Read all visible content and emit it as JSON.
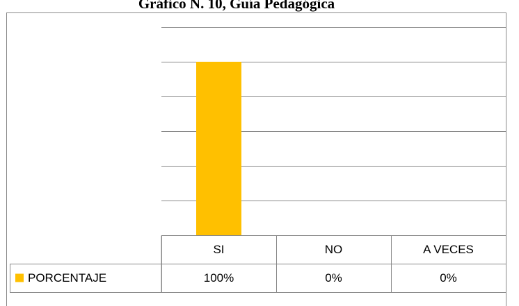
{
  "chart_data": {
    "type": "bar",
    "title": "Gráfico N. 10, Guía Pedagógica",
    "categories": [
      "SI",
      "NO",
      "A VECES"
    ],
    "series": [
      {
        "name": "PORCENTAJE",
        "color": "#ffc000",
        "values": [
          100,
          0,
          0
        ],
        "value_labels": [
          "100%",
          "0%",
          "0%"
        ]
      }
    ],
    "ylim": [
      0,
      120
    ],
    "yticks": [
      0,
      20,
      40,
      60,
      80,
      100,
      120
    ],
    "grid": true
  }
}
